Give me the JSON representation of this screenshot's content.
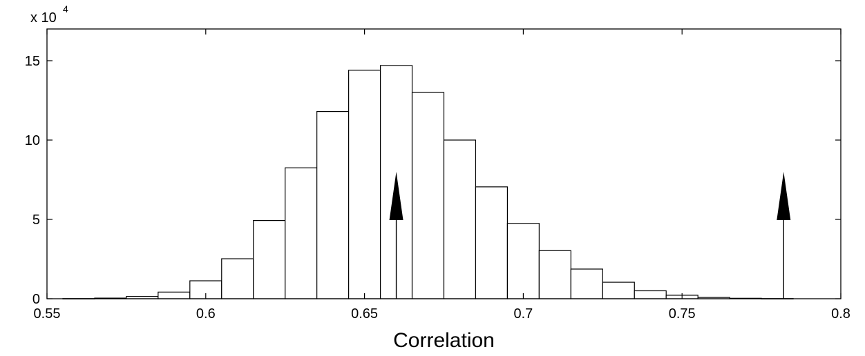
{
  "chart_data": {
    "type": "bar",
    "title": "",
    "xlabel": "Correlation",
    "ylabel": "",
    "y_multiplier_label": {
      "base": "x 10",
      "exponent": "4"
    },
    "xlim": [
      0.55,
      0.8
    ],
    "ylim": [
      0,
      17
    ],
    "xticks": [
      0.55,
      0.6,
      0.65,
      0.7,
      0.75,
      0.8
    ],
    "xtick_labels": [
      "0.55",
      "0.6",
      "0.65",
      "0.7",
      "0.75",
      "0.8"
    ],
    "yticks": [
      0,
      5,
      10,
      15
    ],
    "ytick_labels": [
      "0",
      "5",
      "10",
      "15"
    ],
    "grid": false,
    "bar_color": "#ffffff",
    "edge_color": "#000000",
    "bins": [
      {
        "left": 0.555,
        "right": 0.565,
        "value": 0.01
      },
      {
        "left": 0.565,
        "right": 0.575,
        "value": 0.04
      },
      {
        "left": 0.575,
        "right": 0.585,
        "value": 0.15
      },
      {
        "left": 0.585,
        "right": 0.595,
        "value": 0.42
      },
      {
        "left": 0.595,
        "right": 0.605,
        "value": 1.13
      },
      {
        "left": 0.605,
        "right": 0.615,
        "value": 2.52
      },
      {
        "left": 0.615,
        "right": 0.625,
        "value": 4.93
      },
      {
        "left": 0.625,
        "right": 0.635,
        "value": 8.25
      },
      {
        "left": 0.635,
        "right": 0.645,
        "value": 11.8
      },
      {
        "left": 0.645,
        "right": 0.655,
        "value": 14.4
      },
      {
        "left": 0.655,
        "right": 0.665,
        "value": 14.7
      },
      {
        "left": 0.665,
        "right": 0.675,
        "value": 13.0
      },
      {
        "left": 0.675,
        "right": 0.685,
        "value": 10.0
      },
      {
        "left": 0.685,
        "right": 0.695,
        "value": 7.05
      },
      {
        "left": 0.695,
        "right": 0.705,
        "value": 4.75
      },
      {
        "left": 0.705,
        "right": 0.715,
        "value": 3.03
      },
      {
        "left": 0.715,
        "right": 0.725,
        "value": 1.87
      },
      {
        "left": 0.725,
        "right": 0.735,
        "value": 1.04
      },
      {
        "left": 0.735,
        "right": 0.745,
        "value": 0.5
      },
      {
        "left": 0.745,
        "right": 0.755,
        "value": 0.22
      },
      {
        "left": 0.755,
        "right": 0.765,
        "value": 0.08
      },
      {
        "left": 0.765,
        "right": 0.775,
        "value": 0.03
      },
      {
        "left": 0.775,
        "right": 0.785,
        "value": 0.01
      }
    ],
    "annotations": [
      {
        "type": "arrow",
        "x": 0.66,
        "y_from": 0,
        "y_to": 8.0
      },
      {
        "type": "arrow",
        "x": 0.782,
        "y_from": 0,
        "y_to": 8.0
      }
    ]
  }
}
